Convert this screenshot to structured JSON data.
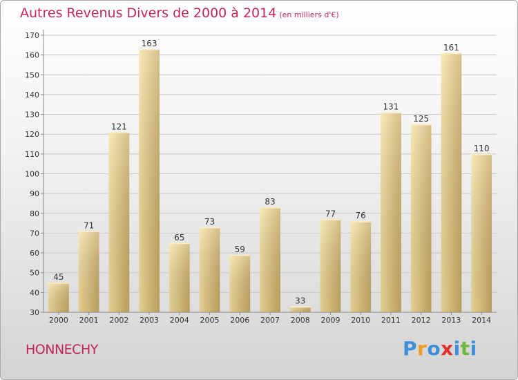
{
  "title": "Autres Revenus Divers de 2000 à 2014",
  "subtitle": "(en milliers d'€)",
  "commune": "HONNECHY",
  "logo": {
    "letters": [
      "P",
      "r",
      "o",
      "x",
      "i",
      "t",
      "i"
    ],
    "colors": [
      "#3d8fd9",
      "#f29a21",
      "#3d8fd9",
      "#e2322b",
      "#3d8fd9",
      "#6cba3d",
      "#3d8fd9"
    ]
  },
  "colors": {
    "title": "#c2255c",
    "bar_light": "#f7e2a0",
    "bar_dark": "#c9aa63",
    "grid": "#c8c8c8",
    "axis_text": "#333333"
  },
  "chart_data": {
    "type": "bar",
    "title": "Autres Revenus Divers de 2000 à 2014",
    "subtitle": "(en milliers d'€)",
    "xlabel": "",
    "ylabel": "",
    "categories": [
      "2000",
      "2001",
      "2002",
      "2003",
      "2004",
      "2005",
      "2006",
      "2007",
      "2008",
      "2009",
      "2010",
      "2011",
      "2012",
      "2013",
      "2014"
    ],
    "values": [
      45,
      71,
      121,
      163,
      65,
      73,
      59,
      83,
      33,
      77,
      76,
      131,
      125,
      161,
      110
    ],
    "ylim": [
      30,
      170
    ],
    "yticks": [
      30,
      40,
      50,
      60,
      70,
      80,
      90,
      100,
      110,
      120,
      130,
      140,
      150,
      160,
      170
    ],
    "grid": true,
    "legend": "none"
  }
}
